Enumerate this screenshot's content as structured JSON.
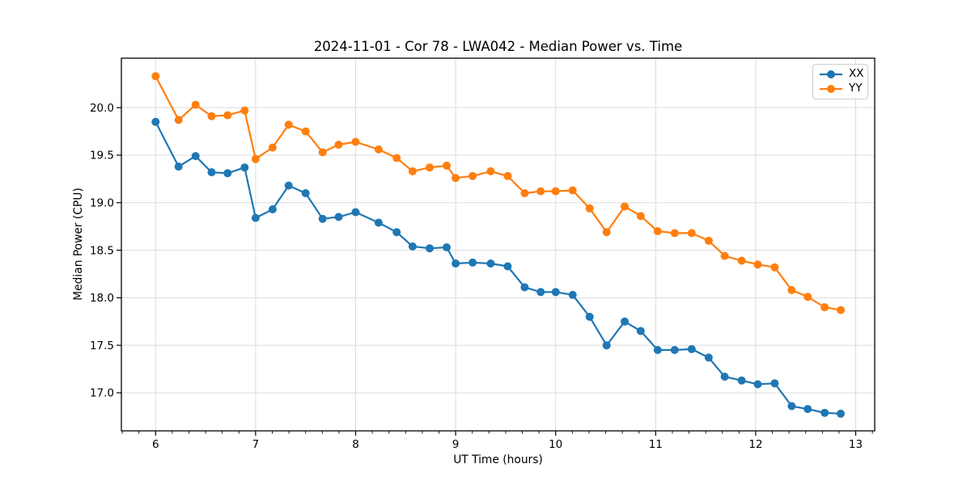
{
  "chart_data": {
    "type": "line",
    "title": "2024-11-01 - Cor 78 - LWA042 - Median Power vs. Time",
    "xlabel": "UT Time (hours)",
    "ylabel": "Median Power (CPU)",
    "xlim": [
      5.658,
      13.19
    ],
    "ylim": [
      16.6,
      20.52
    ],
    "xticks": [
      6,
      7,
      8,
      9,
      10,
      11,
      12,
      13
    ],
    "xtick_labels": [
      "6",
      "7",
      "8",
      "9",
      "10",
      "11",
      "12",
      "13"
    ],
    "yticks": [
      17.0,
      17.5,
      18.0,
      18.5,
      19.0,
      19.5,
      20.0
    ],
    "ytick_labels": [
      "17.0",
      "17.5",
      "18.0",
      "18.5",
      "19.0",
      "19.5",
      "20.0"
    ],
    "x_minor_step": 0.16667,
    "grid": true,
    "legend_position": "upper right",
    "x": [
      6.0,
      6.23,
      6.4,
      6.56,
      6.72,
      6.89,
      7.0,
      7.17,
      7.33,
      7.5,
      7.67,
      7.83,
      8.0,
      8.23,
      8.41,
      8.57,
      8.74,
      8.91,
      9.0,
      9.17,
      9.35,
      9.52,
      9.69,
      9.85,
      10.0,
      10.17,
      10.34,
      10.51,
      10.69,
      10.85,
      11.02,
      11.19,
      11.36,
      11.53,
      11.69,
      11.86,
      12.02,
      12.19,
      12.36,
      12.52,
      12.69,
      12.85
    ],
    "series": [
      {
        "name": "XX",
        "color": "#1f77b4",
        "values": [
          19.85,
          19.38,
          19.49,
          19.32,
          19.31,
          19.37,
          18.84,
          18.93,
          19.18,
          19.1,
          18.83,
          18.85,
          18.9,
          18.79,
          18.69,
          18.54,
          18.52,
          18.53,
          18.36,
          18.37,
          18.36,
          18.33,
          18.11,
          18.06,
          18.06,
          18.03,
          17.8,
          17.5,
          17.75,
          17.65,
          17.45,
          17.45,
          17.46,
          17.37,
          17.17,
          17.13,
          17.09,
          17.1,
          16.86,
          16.83,
          16.79,
          16.78
        ]
      },
      {
        "name": "YY",
        "color": "#ff7f0e",
        "values": [
          20.33,
          19.87,
          20.03,
          19.91,
          19.92,
          19.97,
          19.46,
          19.58,
          19.82,
          19.75,
          19.53,
          19.61,
          19.64,
          19.56,
          19.47,
          19.33,
          19.37,
          19.39,
          19.26,
          19.28,
          19.33,
          19.28,
          19.1,
          19.12,
          19.12,
          19.13,
          18.94,
          18.69,
          18.96,
          18.86,
          18.7,
          18.68,
          18.68,
          18.6,
          18.44,
          18.39,
          18.35,
          18.32,
          18.08,
          18.01,
          17.9,
          17.87
        ]
      }
    ],
    "style": {
      "grid_color": "#dcdcdc",
      "spine_color": "#000000",
      "marker_radius": 5,
      "line_width": 2.2
    }
  }
}
